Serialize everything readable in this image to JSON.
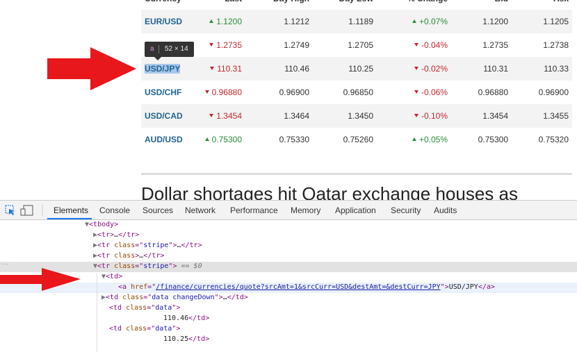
{
  "table": {
    "columns": [
      "Currency",
      "Last",
      "Day High",
      "Day Low",
      "% Change",
      "Bid",
      "Ask"
    ],
    "rows": [
      {
        "pair": "EUR/USD",
        "last": "1.1200",
        "high": "1.1212",
        "low": "1.1189",
        "change": "+0.07%",
        "bid": "1.1200",
        "ask": "1.1205"
      },
      {
        "last": "1.2735",
        "high": "1.2749",
        "low": "1.2705",
        "change": "-0.04%",
        "bid": "1.2735",
        "ask": "1.2738"
      },
      {
        "pair": "USD/JPY",
        "last": "110.31",
        "high": "110.46",
        "low": "110.25",
        "change": "-0.02%",
        "bid": "110.31",
        "ask": "110.33"
      },
      {
        "pair": "USD/CHF",
        "last": "0.96880",
        "high": "0.96900",
        "low": "0.96850",
        "change": "-0.06%",
        "bid": "0.96880",
        "ask": "0.96900"
      },
      {
        "pair": "USD/CAD",
        "last": "1.3454",
        "high": "1.3464",
        "low": "1.3450",
        "change": "-0.10%",
        "bid": "1.3454",
        "ask": "1.3455"
      },
      {
        "pair": "AUD/USD",
        "last": "0.75300",
        "high": "0.75330",
        "low": "0.75260",
        "change": "+0.05%",
        "bid": "0.75300",
        "ask": "0.75320"
      }
    ]
  },
  "tooltip": {
    "tag": "a",
    "size": "52 × 14"
  },
  "article": {
    "headline": "Dollar shortages hit Qatar exchange houses as"
  },
  "devtools": {
    "tabs": [
      "Elements",
      "Console",
      "Sources",
      "Network",
      "Performance",
      "Memory",
      "Application",
      "Security",
      "Audits"
    ],
    "dom": [
      "▼<tbody>",
      "▶<tr>…</tr>",
      "▶<tr class=\"stripe\">…</tr>",
      "▶<tr class>…</tr>",
      "▼<tr class=\"stripe\"> == $0",
      "▼<td>",
      "<a href=\"/finance/currencies/quote?srcAmt=1&srcCurr=USD&destAmt=&destCurr=JPY\">USD/JPY</a>",
      "▶<td class=\"data changeDown\">…</td>",
      "<td class=\"data\">",
      "110.46</td>",
      "<td class=\"data\">",
      "110.25</td>"
    ]
  }
}
